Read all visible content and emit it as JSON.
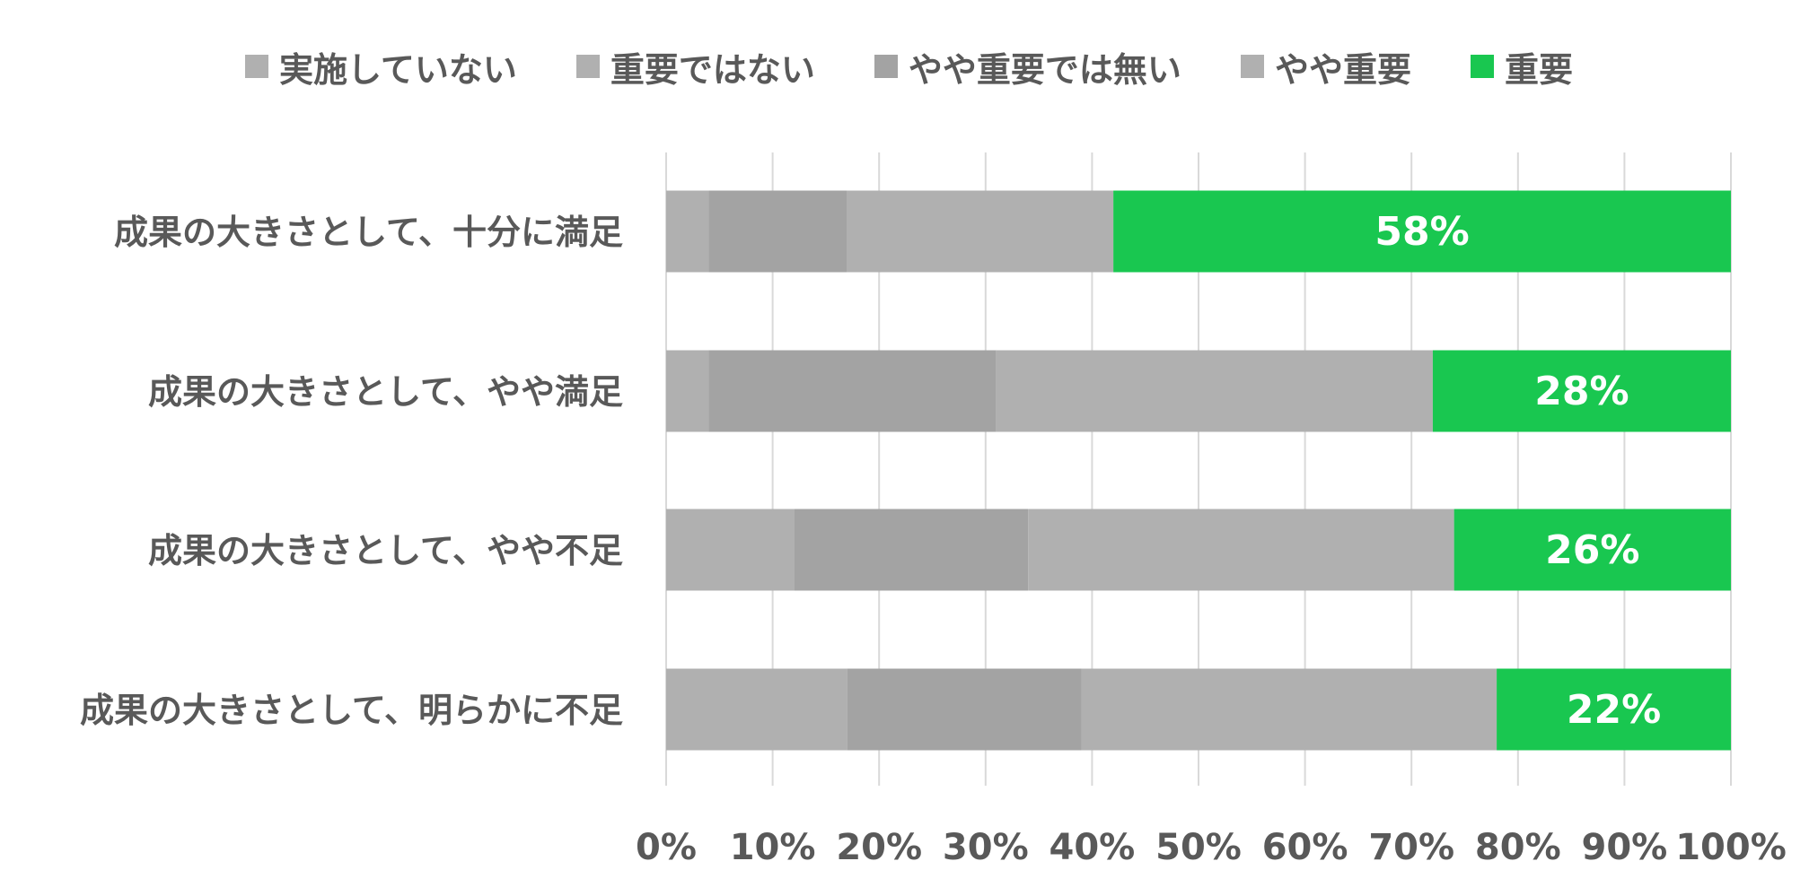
{
  "chart_data": {
    "type": "bar",
    "orientation": "horizontal",
    "stacked": true,
    "normalized_percent": true,
    "categories": [
      "成果の大きさとして、十分に満足",
      "成果の大きさとして、やや満足",
      "成果の大きさとして、やや不足",
      "成果の大きさとして、明らかに不足"
    ],
    "series": [
      {
        "name": "実施していない",
        "color": "#b0b0b0",
        "values": [
          0,
          0,
          0,
          0
        ]
      },
      {
        "name": "重要ではない",
        "color": "#b0b0b0",
        "values": [
          4,
          4,
          12,
          17
        ]
      },
      {
        "name": "やや重要では無い",
        "color": "#a3a3a3",
        "values": [
          13,
          27,
          22,
          22
        ]
      },
      {
        "name": "やや重要",
        "color": "#b0b0b0",
        "values": [
          25,
          41,
          40,
          39
        ]
      },
      {
        "name": "重要",
        "color": "#19c750",
        "values": [
          58,
          28,
          26,
          22
        ]
      }
    ],
    "data_labels": [
      "58%",
      "28%",
      "26%",
      "22%"
    ],
    "xlim": [
      0,
      100
    ],
    "xticks": [
      "0%",
      "10%",
      "20%",
      "30%",
      "40%",
      "50%",
      "60%",
      "70%",
      "80%",
      "90%",
      "100%"
    ],
    "title": "",
    "xlabel": "",
    "ylabel": "",
    "grid": "vertical",
    "legend_position": "top"
  }
}
